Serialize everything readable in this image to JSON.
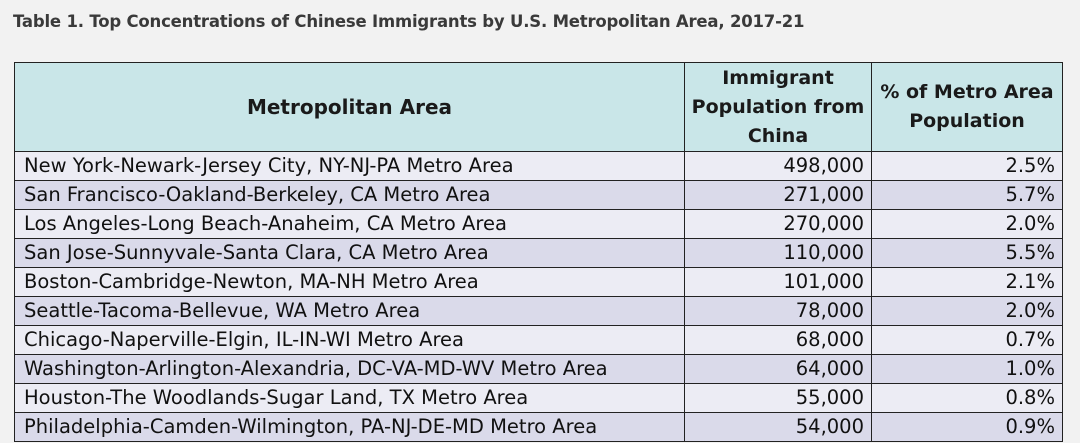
{
  "table": {
    "caption": "Table 1. Top Concentrations of Chinese Immigrants by U.S. Metropolitan Area, 2017-21",
    "headers": {
      "area": "Metropolitan Area",
      "population_line1": "Immigrant",
      "population_line2": "Population from",
      "population_line3": "China",
      "percent_line1": "% of Metro Area",
      "percent_line2": "Population"
    },
    "rows": [
      {
        "area": "New York-Newark-Jersey City, NY-NJ-PA Metro Area",
        "population": "498,000",
        "percent": "2.5%"
      },
      {
        "area": "San Francisco-Oakland-Berkeley, CA Metro Area",
        "population": "271,000",
        "percent": "5.7%"
      },
      {
        "area": "Los Angeles-Long Beach-Anaheim, CA Metro Area",
        "population": "270,000",
        "percent": "2.0%"
      },
      {
        "area": "San Jose-Sunnyvale-Santa Clara, CA Metro Area",
        "population": "110,000",
        "percent": "5.5%"
      },
      {
        "area": "Boston-Cambridge-Newton, MA-NH Metro Area",
        "population": "101,000",
        "percent": "2.1%"
      },
      {
        "area": "Seattle-Tacoma-Bellevue, WA Metro Area",
        "population": "78,000",
        "percent": "2.0%"
      },
      {
        "area": "Chicago-Naperville-Elgin, IL-IN-WI Metro Area",
        "population": "68,000",
        "percent": "0.7%"
      },
      {
        "area": "Washington-Arlington-Alexandria, DC-VA-MD-WV Metro Area",
        "population": "64,000",
        "percent": "1.0%"
      },
      {
        "area": "Houston-The Woodlands-Sugar Land, TX Metro Area",
        "population": "55,000",
        "percent": "0.8%"
      },
      {
        "area": "Philadelphia-Camden-Wilmington, PA-NJ-DE-MD Metro Area",
        "population": "54,000",
        "percent": "0.9%"
      }
    ]
  },
  "colors": {
    "header_background": "#c9e6e8",
    "row_light": "#ececf4",
    "row_dark": "#dadaea",
    "page_background": "#f2f2f2"
  }
}
